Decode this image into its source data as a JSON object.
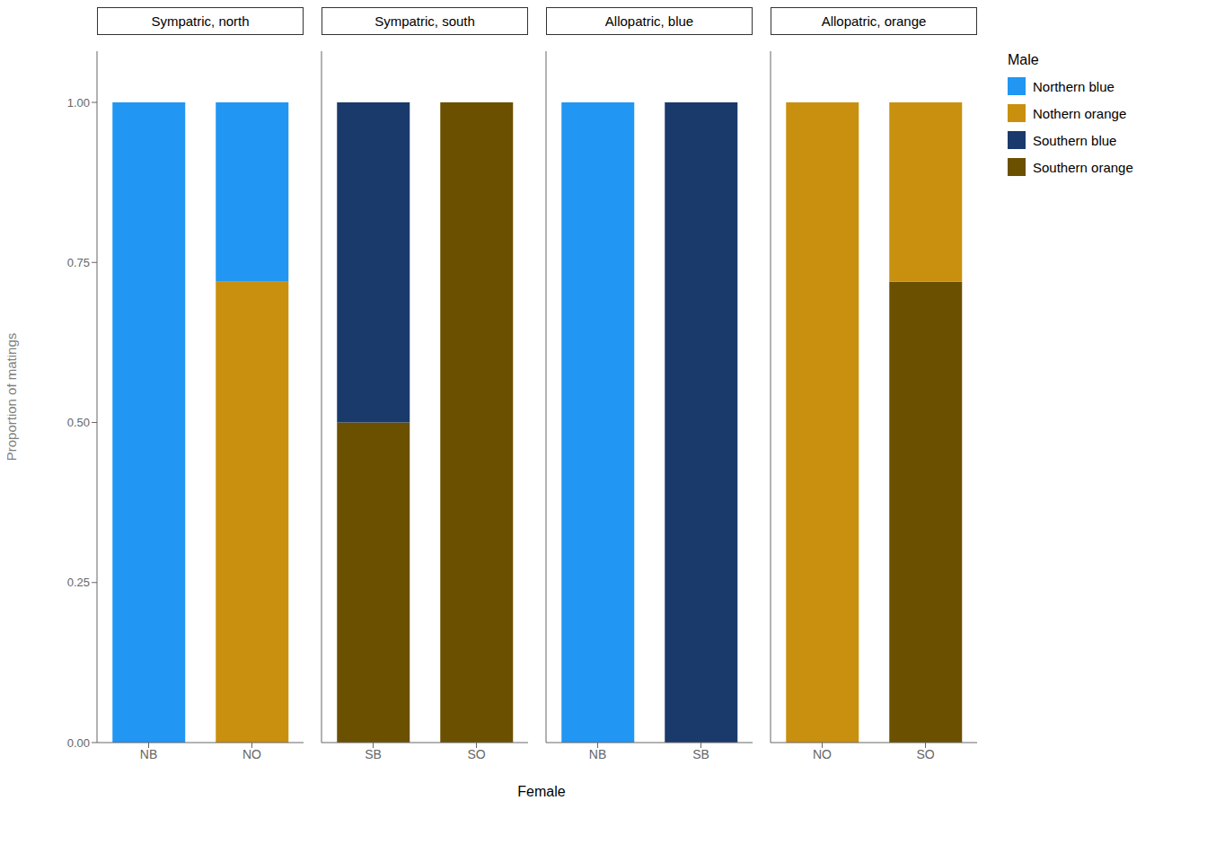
{
  "chart_data": [
    {
      "type": "bar",
      "title": "Sympatric, north",
      "ylabel": "Proportion of matings",
      "xlabel": "Female",
      "categories": [
        "NB",
        "NO"
      ],
      "stacked": true,
      "grid": false,
      "ylim": [
        0,
        1.08
      ],
      "yticks": [
        {
          "value": 0.0,
          "label": "0.00"
        },
        {
          "value": 0.25,
          "label": "0.25"
        },
        {
          "value": 0.5,
          "label": "0.50"
        },
        {
          "value": 0.75,
          "label": "0.75"
        },
        {
          "value": 1.0,
          "label": "1.00"
        }
      ],
      "series": [
        {
          "name": "Nothern orange",
          "color": "#C99010",
          "values": [
            null,
            0.72
          ]
        },
        {
          "name": "Northern blue",
          "color": "#2196F3",
          "values": [
            1.0,
            0.28
          ]
        }
      ]
    },
    {
      "type": "bar",
      "title": "Sympatric, south",
      "tick_labels": "x",
      "categories": [
        "SB",
        "SO"
      ],
      "stacked": true,
      "grid": false,
      "ylim": [
        0,
        1.08
      ],
      "yticks": [
        {
          "value": 0.0,
          "label": "0.00"
        },
        {
          "value": 0.25,
          "label": "0.25"
        },
        {
          "value": 0.5,
          "label": "0.50"
        },
        {
          "value": 0.75,
          "label": "0.75"
        },
        {
          "value": 1.0,
          "label": "1.00"
        }
      ],
      "series": [
        {
          "name": "Southern orange",
          "color": "#6B5000",
          "values": [
            0.5,
            1.0
          ]
        },
        {
          "name": "Southern blue",
          "color": "#1A3A6B",
          "values": [
            0.5,
            null
          ]
        }
      ]
    },
    {
      "type": "bar",
      "title": "Allopatric, blue",
      "tick_labels": "x",
      "categories": [
        "NB",
        "SB"
      ],
      "stacked": true,
      "grid": false,
      "ylim": [
        0,
        1.08
      ],
      "yticks": [
        {
          "value": 0.0,
          "label": "0.00"
        },
        {
          "value": 0.25,
          "label": "0.25"
        },
        {
          "value": 0.5,
          "label": "0.50"
        },
        {
          "value": 0.75,
          "label": "0.75"
        },
        {
          "value": 1.0,
          "label": "1.00"
        }
      ],
      "series": [
        {
          "name": "Northern blue",
          "color": "#2196F3",
          "values": [
            1.0,
            null
          ]
        },
        {
          "name": "Southern blue",
          "color": "#1A3A6B",
          "values": [
            null,
            1.0
          ]
        }
      ]
    },
    {
      "type": "bar",
      "title": "Allopatric, orange",
      "tick_labels": "x",
      "categories": [
        "NO",
        "SO"
      ],
      "stacked": true,
      "grid": false,
      "ylim": [
        0,
        1.08
      ],
      "yticks": [
        {
          "value": 0.0,
          "label": "0.00"
        },
        {
          "value": 0.25,
          "label": "0.25"
        },
        {
          "value": 0.5,
          "label": "0.50"
        },
        {
          "value": 0.75,
          "label": "0.75"
        },
        {
          "value": 1.0,
          "label": "1.00"
        }
      ],
      "legend": "right",
      "legend_title": "Male",
      "legend_names": [
        "Northern blue",
        "Nothern orange",
        "Southern blue",
        "Southern orange"
      ],
      "series": [
        {
          "name": "Southern orange",
          "color": "#6B5000",
          "values": [
            null,
            0.72
          ]
        },
        {
          "name": "Nothern orange",
          "color": "#C99010",
          "values": [
            1.0,
            0.28
          ]
        }
      ]
    }
  ]
}
